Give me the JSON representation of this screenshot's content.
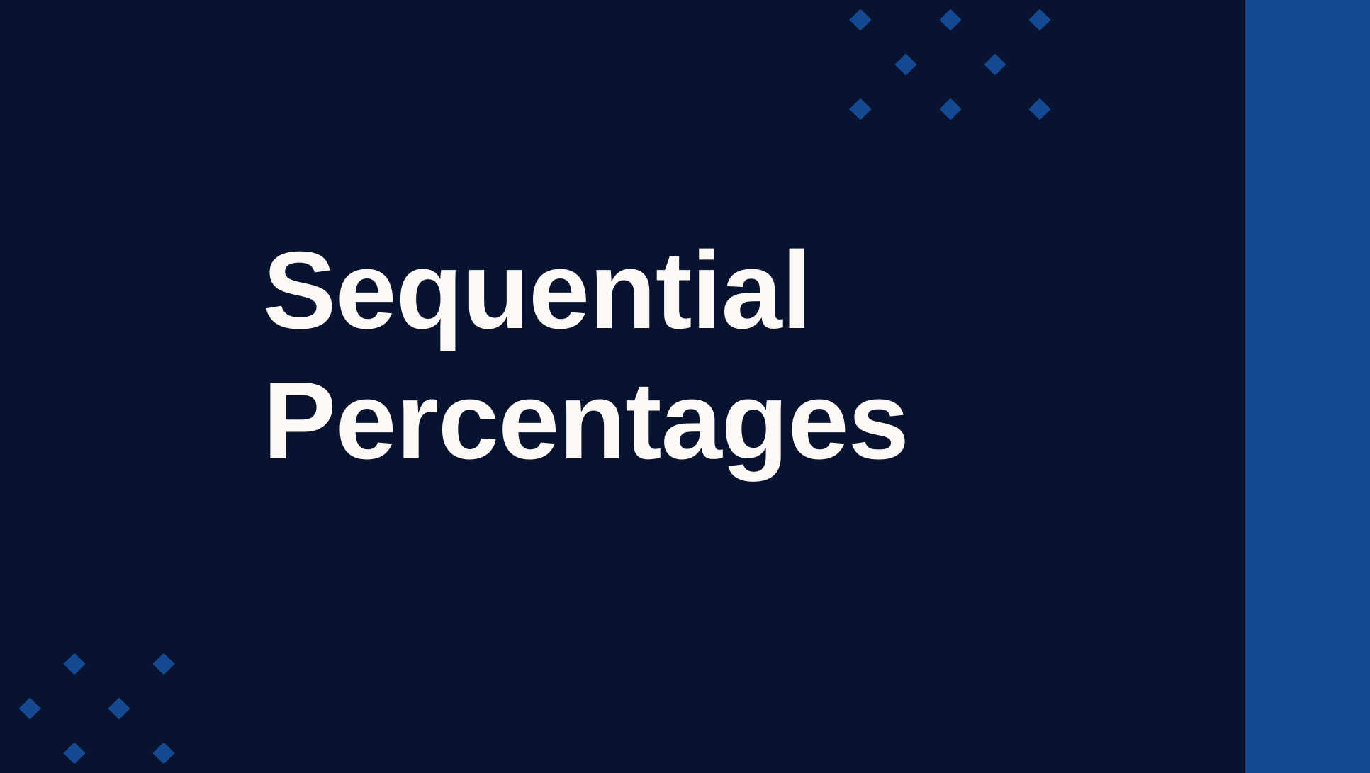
{
  "slide": {
    "title_line_1": "Sequential",
    "title_line_2": "Percentages"
  },
  "colors": {
    "background": "#08142f",
    "accent": "#154a92",
    "title_text": "#fdf9f7"
  },
  "decorations": {
    "top_right_pattern": "diamond-grid",
    "bottom_left_pattern": "diamond-grid",
    "right_edge": "solid-accent-bar"
  }
}
